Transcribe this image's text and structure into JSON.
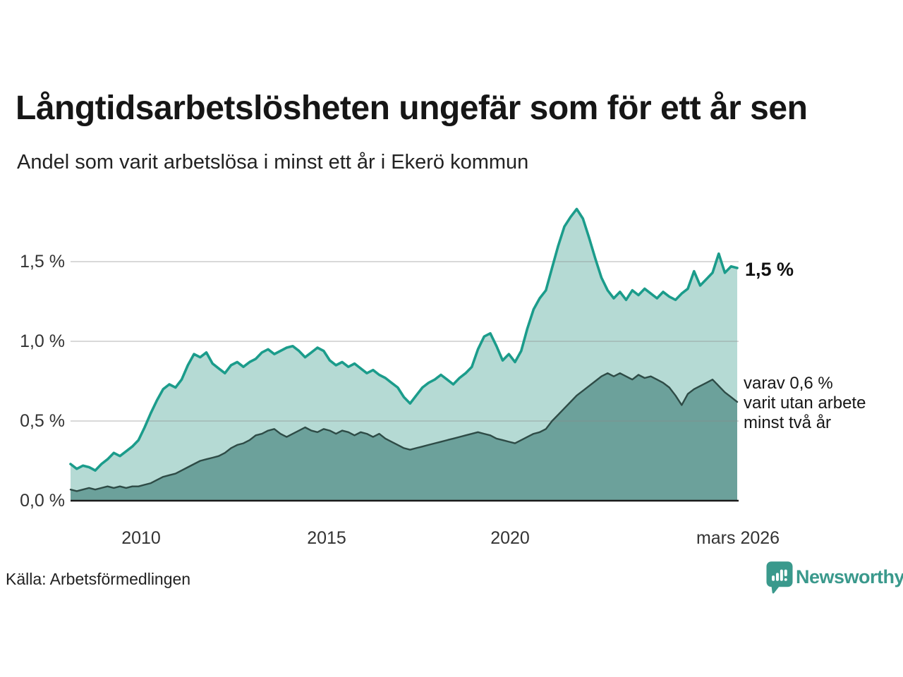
{
  "header": {
    "title": "Långtidsarbetslösheten ungefär som för ett år sen",
    "subtitle": "Andel som varit arbetslösa i minst ett år i Ekerö kommun"
  },
  "axes": {
    "y_ticks": [
      "1,5 %",
      "1,0 %",
      "0,5 %",
      "0,0 %"
    ],
    "x_ticks": [
      "2010",
      "2015",
      "2020",
      "mars 2026"
    ]
  },
  "annotations": {
    "end_value": "1,5 %",
    "secondary_line1": "varav 0,6 %",
    "secondary_line2": "varit utan arbete",
    "secondary_line3": "minst två år"
  },
  "footer": {
    "source": "Källa: Arbetsförmedlingen",
    "brand": "Newsworthy"
  },
  "colors": {
    "accent_line": "#1b9c8b",
    "fill_light": "#b5dad4",
    "fill_dark": "#6ca19b",
    "dark_line": "#2e4b46",
    "grid": "#8a8a8a",
    "axis": "#1a1a1a",
    "brand_teal": "#3a998c",
    "text": "#161616"
  },
  "chart_data": {
    "type": "area",
    "title": "Långtidsarbetslösheten ungefär som för ett år sen",
    "subtitle": "Andel som varit arbetslösa i minst ett år i Ekerö kommun",
    "unit": "%",
    "x_range": [
      2008.08,
      2026.17
    ],
    "x_tick_values": [
      2010,
      2015,
      2020,
      2026.17
    ],
    "x_tick_labels": [
      "2010",
      "2015",
      "2020",
      "mars 2026"
    ],
    "ylim": [
      0,
      1.9
    ],
    "y_gridlines": [
      0.5,
      1.0,
      1.5
    ],
    "y_gridline_labels": [
      "0,5 %",
      "1,0 %",
      "1,5 %"
    ],
    "grid": true,
    "legend_position": "right-edge-annotations",
    "end_value_label": "1,5 %",
    "secondary_end_label": "varav 0,6 % varit utan arbete minst två år",
    "series": [
      {
        "name": "Andel arbetslösa minst ett år",
        "line_color": "#1b9c8b",
        "fill_color": "#b5dad4",
        "end_value": 1.5,
        "values": [
          0.23,
          0.2,
          0.22,
          0.21,
          0.19,
          0.23,
          0.26,
          0.3,
          0.28,
          0.31,
          0.34,
          0.38,
          0.46,
          0.55,
          0.63,
          0.7,
          0.73,
          0.71,
          0.76,
          0.85,
          0.92,
          0.9,
          0.93,
          0.86,
          0.83,
          0.8,
          0.85,
          0.87,
          0.84,
          0.87,
          0.89,
          0.93,
          0.95,
          0.92,
          0.94,
          0.96,
          0.97,
          0.94,
          0.9,
          0.93,
          0.96,
          0.94,
          0.88,
          0.85,
          0.87,
          0.84,
          0.86,
          0.83,
          0.8,
          0.82,
          0.79,
          0.77,
          0.74,
          0.71,
          0.65,
          0.61,
          0.66,
          0.71,
          0.74,
          0.76,
          0.79,
          0.76,
          0.73,
          0.77,
          0.8,
          0.84,
          0.95,
          1.03,
          1.05,
          0.97,
          0.88,
          0.92,
          0.87,
          0.94,
          1.08,
          1.2,
          1.27,
          1.32,
          1.46,
          1.6,
          1.72,
          1.78,
          1.83,
          1.77,
          1.65,
          1.52,
          1.4,
          1.32,
          1.27,
          1.31,
          1.26,
          1.32,
          1.29,
          1.33,
          1.3,
          1.27,
          1.31,
          1.28,
          1.26,
          1.3,
          1.33,
          1.44,
          1.35,
          1.39,
          1.43,
          1.55,
          1.43,
          1.47,
          1.46
        ]
      },
      {
        "name": "varav utan arbete minst två år",
        "line_color": "#2e4b46",
        "fill_color": "#6ca19b",
        "end_value": 0.6,
        "values": [
          0.07,
          0.06,
          0.07,
          0.08,
          0.07,
          0.08,
          0.09,
          0.08,
          0.09,
          0.08,
          0.09,
          0.09,
          0.1,
          0.11,
          0.13,
          0.15,
          0.16,
          0.17,
          0.19,
          0.21,
          0.23,
          0.25,
          0.26,
          0.27,
          0.28,
          0.3,
          0.33,
          0.35,
          0.36,
          0.38,
          0.41,
          0.42,
          0.44,
          0.45,
          0.42,
          0.4,
          0.42,
          0.44,
          0.46,
          0.44,
          0.43,
          0.45,
          0.44,
          0.42,
          0.44,
          0.43,
          0.41,
          0.43,
          0.42,
          0.4,
          0.42,
          0.39,
          0.37,
          0.35,
          0.33,
          0.32,
          0.33,
          0.34,
          0.35,
          0.36,
          0.37,
          0.38,
          0.39,
          0.4,
          0.41,
          0.42,
          0.43,
          0.42,
          0.41,
          0.39,
          0.38,
          0.37,
          0.36,
          0.38,
          0.4,
          0.42,
          0.43,
          0.45,
          0.5,
          0.54,
          0.58,
          0.62,
          0.66,
          0.69,
          0.72,
          0.75,
          0.78,
          0.8,
          0.78,
          0.8,
          0.78,
          0.76,
          0.79,
          0.77,
          0.78,
          0.76,
          0.74,
          0.71,
          0.66,
          0.6,
          0.67,
          0.7,
          0.72,
          0.74,
          0.76,
          0.72,
          0.68,
          0.65,
          0.62
        ]
      }
    ]
  }
}
